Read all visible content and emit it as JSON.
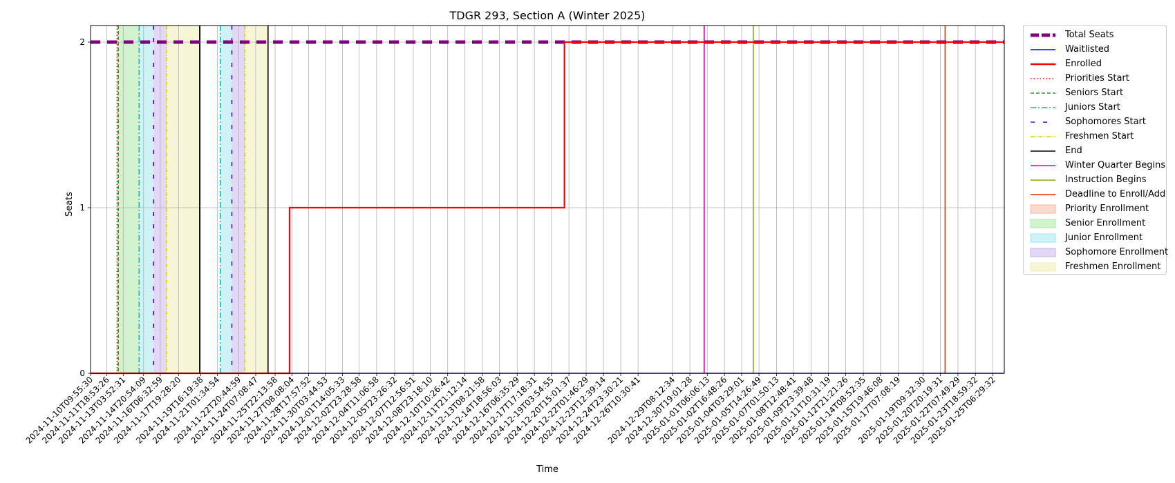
{
  "chart_data": {
    "type": "line",
    "title": "TDGR 293, Section A (Winter 2025)",
    "xlabel": "Time",
    "ylabel": "Seats",
    "x_start": "2024-11-10T09:55:30",
    "x_end": "2025-01-26T05:20:00",
    "ylim": [
      0,
      2.1
    ],
    "yticks": [
      0,
      1,
      2
    ],
    "grid": true,
    "legend_position": "outside-right",
    "xtick_labels": [
      "2024-11-10T09:55:30",
      "2024-11-11T18:53:26",
      "2024-11-13T03:52:31",
      "2024-11-14T20:54:09",
      "2024-11-16T06:32:59",
      "2024-11-17T19:28:20",
      "2024-11-19T16:19:38",
      "2024-11-21T01:34:54",
      "2024-11-22T20:44:59",
      "2024-11-24T07:08:47",
      "2024-11-25T22:13:58",
      "2024-11-27T08:08:04",
      "2024-11-28T17:57:52",
      "2024-11-30T03:44:53",
      "2024-12-01T14:05:33",
      "2024-12-02T23:28:58",
      "2024-12-04T11:06:58",
      "2024-12-05T23:26:32",
      "2024-12-07T12:56:51",
      "2024-12-08T23:18:10",
      "2024-12-10T10:26:42",
      "2024-12-11T21:12:14",
      "2024-12-13T08:21:58",
      "2024-12-14T18:56:03",
      "2024-12-16T06:35:29",
      "2024-12-17T17:18:31",
      "2024-12-19T03:54:55",
      "2024-12-20T15:01:37",
      "2024-12-22T01:46:29",
      "2024-12-23T12:39:14",
      "2024-12-24T23:30:21",
      "2024-12-26T10:30:41",
      "2024-12-29T08:12:34",
      "2024-12-30T19:01:28",
      "2025-01-01T06:06:13",
      "2025-01-02T16:48:26",
      "2025-01-04T03:29:01",
      "2025-01-05T14:26:49",
      "2025-01-07T01:50:13",
      "2025-01-08T12:48:41",
      "2025-01-09T23:39:48",
      "2025-01-11T10:31:19",
      "2025-01-12T21:21:26",
      "2025-01-14T08:52:35",
      "2025-01-15T19:46:08",
      "2025-01-17T07:08:19",
      "2025-01-19T09:32:30",
      "2025-01-20T20:19:31",
      "2025-01-22T07:49:29",
      "2025-01-23T18:59:32",
      "2025-01-25T06:29:32"
    ],
    "series": [
      {
        "name": "Total Seats",
        "color": "#800080",
        "style": "dashed-thick",
        "x": [
          "2024-11-10T09:55:30",
          "2025-01-26T05:20:00"
        ],
        "y": [
          2,
          2
        ]
      },
      {
        "name": "Waitlisted",
        "color": "#0000ff",
        "style": "solid",
        "x": [
          "2024-11-10T09:55:30",
          "2025-01-26T05:20:00"
        ],
        "y": [
          0,
          0
        ]
      },
      {
        "name": "Enrolled",
        "color": "#ff0000",
        "style": "step-solid-thick",
        "x": [
          "2024-11-10T09:55:30",
          "2024-11-27T03:30:00",
          "2024-12-20T06:00:00",
          "2025-01-26T05:20:00"
        ],
        "y": [
          0,
          1,
          2,
          2
        ]
      }
    ],
    "events": [
      {
        "name": "Priorities Start",
        "color": "#ff0000",
        "style": "dotted",
        "x": [
          "2024-11-12T15:30:00"
        ]
      },
      {
        "name": "Seniors Start",
        "color": "#00bb00",
        "style": "dashed",
        "x": [
          "2024-11-12T18:00:00"
        ]
      },
      {
        "name": "Juniors Start",
        "color": "#00bfbf",
        "style": "dashdot",
        "x": [
          "2024-11-14T12:00:00",
          "2024-11-21T08:00:00"
        ]
      },
      {
        "name": "Sophomores Start",
        "color": "#5500dd",
        "style": "loosedash",
        "x": [
          "2024-11-15T17:00:00",
          "2024-11-22T07:00:00"
        ]
      },
      {
        "name": "Freshmen Start",
        "color": "#d4d400",
        "style": "dashdot-thin",
        "x": [
          "2024-11-16T19:00:00",
          "2024-11-23T09:00:00"
        ]
      },
      {
        "name": "End",
        "color": "#000000",
        "style": "solid",
        "x": [
          "2024-11-19T14:00:00",
          "2024-11-25T08:00:00"
        ]
      },
      {
        "name": "Winter Quarter Begins",
        "color": "#dd00aa",
        "style": "solid",
        "x": [
          "2025-01-01T00:00:00"
        ]
      },
      {
        "name": "Instruction Begins",
        "color": "#88aa00",
        "style": "solid",
        "x": [
          "2025-01-05T03:00:00"
        ]
      },
      {
        "name": "Deadline to Enroll/Add",
        "color": "#e03000",
        "style": "solid",
        "x": [
          "2025-01-21T06:00:00"
        ]
      }
    ],
    "periods": [
      {
        "name": "Priority Enrollment",
        "color": "#f4b6a0",
        "spans": [
          [
            "2024-11-12T15:30:00",
            "2024-11-12T18:00:00"
          ]
        ]
      },
      {
        "name": "Senior Enrollment",
        "color": "#a8e8a0",
        "spans": [
          [
            "2024-11-12T18:00:00",
            "2024-11-14T12:00:00"
          ]
        ]
      },
      {
        "name": "Junior Enrollment",
        "color": "#a0e6ee",
        "spans": [
          [
            "2024-11-14T12:00:00",
            "2024-11-15T17:00:00"
          ],
          [
            "2024-11-21T08:00:00",
            "2024-11-22T07:00:00"
          ]
        ]
      },
      {
        "name": "Sophomore Enrollment",
        "color": "#c6b2ee",
        "spans": [
          [
            "2024-11-15T17:00:00",
            "2024-11-16T19:00:00"
          ],
          [
            "2024-11-22T07:00:00",
            "2024-11-23T09:00:00"
          ]
        ]
      },
      {
        "name": "Freshmen Enrollment",
        "color": "#eeeeb0",
        "spans": [
          [
            "2024-11-16T19:00:00",
            "2024-11-19T14:00:00"
          ],
          [
            "2024-11-23T09:00:00",
            "2024-11-25T08:00:00"
          ]
        ]
      }
    ]
  }
}
